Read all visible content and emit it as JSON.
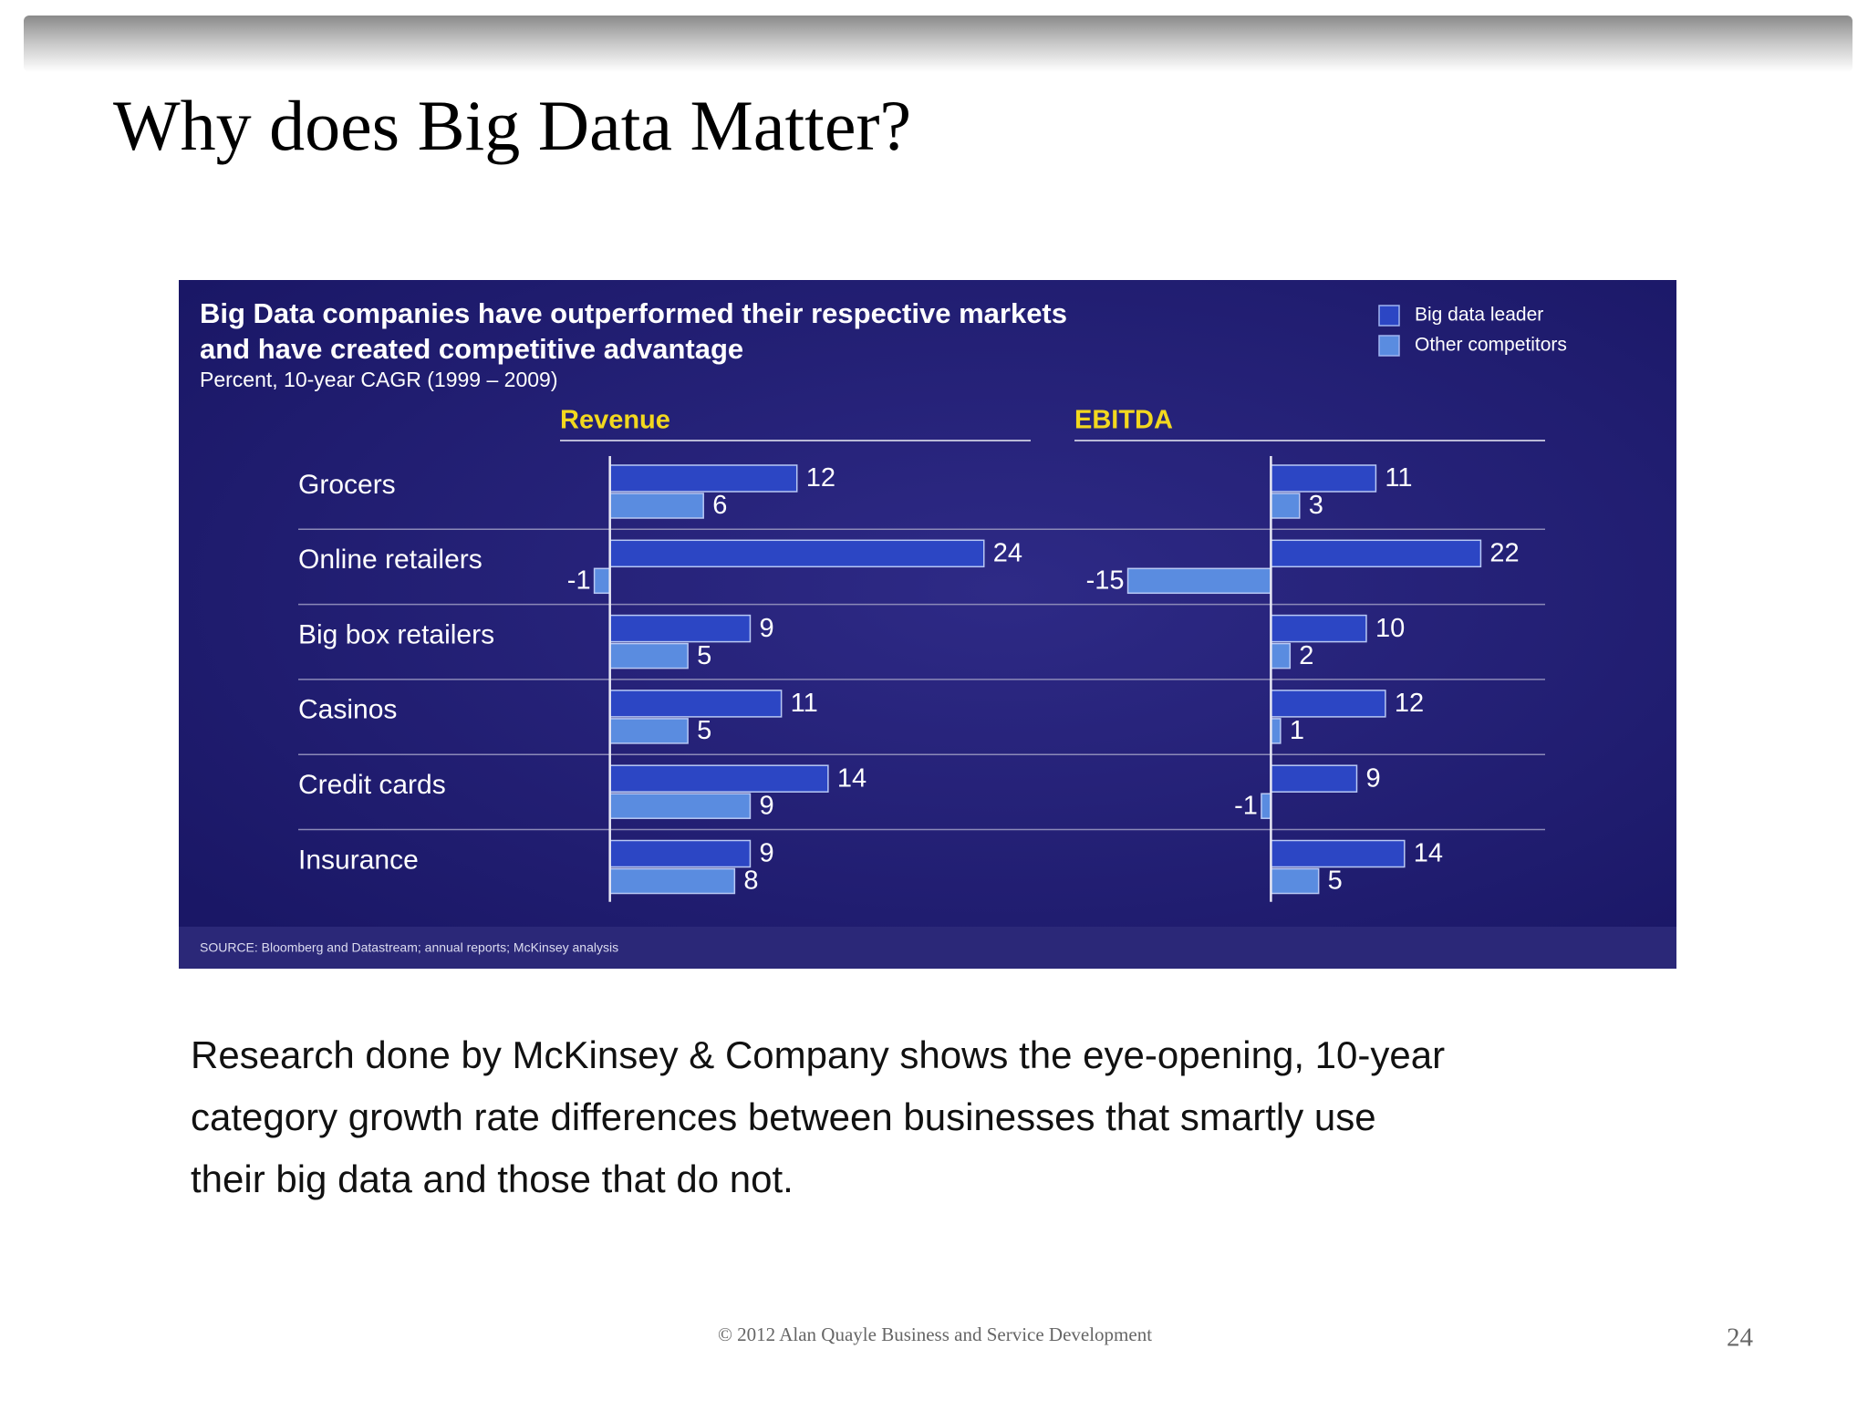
{
  "slide_title": "Why does Big Data Matter?",
  "chart_data": {
    "type": "bar",
    "orientation": "horizontal",
    "title": [
      "Big Data companies have outperformed their respective markets",
      "and have created competitive advantage"
    ],
    "subtitle": "Percent, 10-year CAGR (1999 – 2009)",
    "source": "SOURCE: Bloomberg and Datastream; annual reports; McKinsey analysis",
    "categories": [
      "Grocers",
      "Online retailers",
      "Big box retailers",
      "Casinos",
      "Credit cards",
      "Insurance"
    ],
    "series": [
      {
        "name": "Big data leader",
        "color": "#2c46c4"
      },
      {
        "name": "Other competitors",
        "color": "#5a8ce0"
      }
    ],
    "panels": [
      {
        "title": "Revenue",
        "xlim": [
          -3.2,
          27
        ],
        "values": [
          [
            12,
            24,
            9,
            11,
            14,
            9
          ],
          [
            6,
            -1,
            5,
            5,
            9,
            8
          ]
        ]
      },
      {
        "title": "EBITDA",
        "xlim": [
          -20.6,
          28.75
        ],
        "values": [
          [
            11,
            22,
            10,
            12,
            9,
            14
          ],
          [
            3,
            -15,
            2,
            1,
            -1,
            5
          ]
        ]
      }
    ]
  },
  "caption": [
    "Research done by McKinsey & Company shows the eye-opening, 10-year",
    "category growth rate differences between businesses that smartly use",
    "their big data and those that do not."
  ],
  "footer": "© 2012 Alan Quayle Business and Service Development",
  "page_number": "24"
}
